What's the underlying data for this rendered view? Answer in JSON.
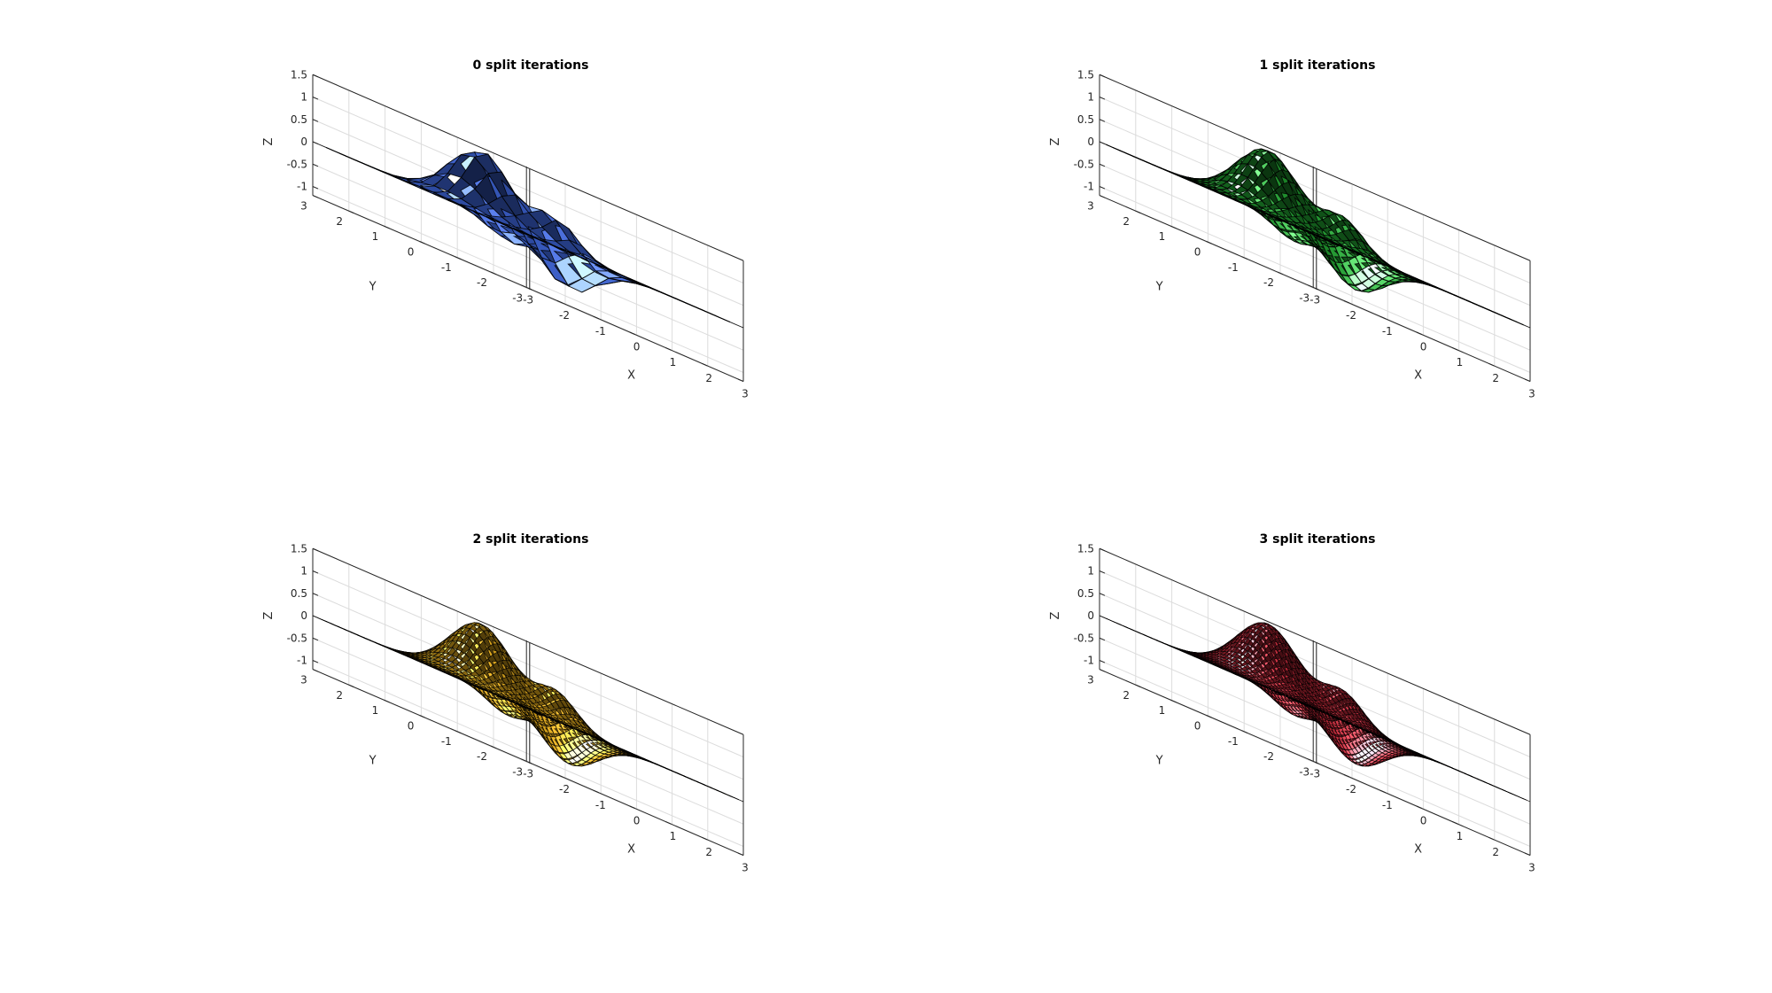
{
  "figure": {
    "background": "#ffffff",
    "edge_color": "#000000"
  },
  "chart_data": [
    {
      "type": "surface",
      "title": "0 split iterations",
      "xlabel": "X",
      "ylabel": "Y",
      "zlabel": "Z",
      "xlim": [
        -3,
        3
      ],
      "ylim": [
        -3,
        3
      ],
      "zlim": [
        -1.2,
        1.5
      ],
      "xticks": [
        "-3",
        "-2",
        "-1",
        "0",
        "1",
        "2",
        "3"
      ],
      "yticks": [
        "-3",
        "-2",
        "-1",
        "0",
        "1",
        "2",
        "3"
      ],
      "zticks": [
        "-1",
        "-0.5",
        "0",
        "0.5",
        "1",
        "1.5"
      ],
      "grid": true,
      "function": "peaks-like bump surface on [-3,3]x[-3,3]",
      "mesh_size": 17,
      "face_color": "#3a5fcd"
    },
    {
      "type": "surface",
      "title": "1 split iterations",
      "xlabel": "X",
      "ylabel": "Y",
      "zlabel": "Z",
      "xlim": [
        -3,
        3
      ],
      "ylim": [
        -3,
        3
      ],
      "zlim": [
        -1.2,
        1.5
      ],
      "xticks": [
        "-3",
        "-2",
        "-1",
        "0",
        "1",
        "2",
        "3"
      ],
      "yticks": [
        "-3",
        "-2",
        "-1",
        "0",
        "1",
        "2",
        "3"
      ],
      "zticks": [
        "-1",
        "-0.5",
        "0",
        "0.5",
        "1",
        "1.5"
      ],
      "grid": true,
      "function": "peaks-like bump surface on [-3,3]x[-3,3]",
      "mesh_size": 33,
      "face_color": "#1f9a2e"
    },
    {
      "type": "surface",
      "title": "2 split iterations",
      "xlabel": "X",
      "ylabel": "Y",
      "zlabel": "Z",
      "xlim": [
        -3,
        3
      ],
      "ylim": [
        -3,
        3
      ],
      "zlim": [
        -1.2,
        1.5
      ],
      "xticks": [
        "-3",
        "-2",
        "-1",
        "0",
        "1",
        "2",
        "3"
      ],
      "yticks": [
        "-3",
        "-2",
        "-1",
        "0",
        "1",
        "2",
        "3"
      ],
      "zticks": [
        "-1",
        "-0.5",
        "0",
        "0.5",
        "1",
        "1.5"
      ],
      "grid": true,
      "function": "peaks-like bump surface on [-3,3]x[-3,3]",
      "mesh_size": 49,
      "face_color": "#e6ad1c"
    },
    {
      "type": "surface",
      "title": "3 split iterations",
      "xlabel": "X",
      "ylabel": "Y",
      "zlabel": "Z",
      "xlim": [
        -3,
        3
      ],
      "ylim": [
        -3,
        3
      ],
      "zlim": [
        -1.2,
        1.5
      ],
      "xticks": [
        "-3",
        "-2",
        "-1",
        "0",
        "1",
        "2",
        "3"
      ],
      "yticks": [
        "-3",
        "-2",
        "-1",
        "0",
        "1",
        "2",
        "3"
      ],
      "zticks": [
        "-1",
        "-0.5",
        "0",
        "0.5",
        "1",
        "1.5"
      ],
      "grid": true,
      "function": "peaks-like bump surface on [-3,3]x[-3,3]",
      "mesh_size": 65,
      "face_color": "#c8293a"
    }
  ]
}
